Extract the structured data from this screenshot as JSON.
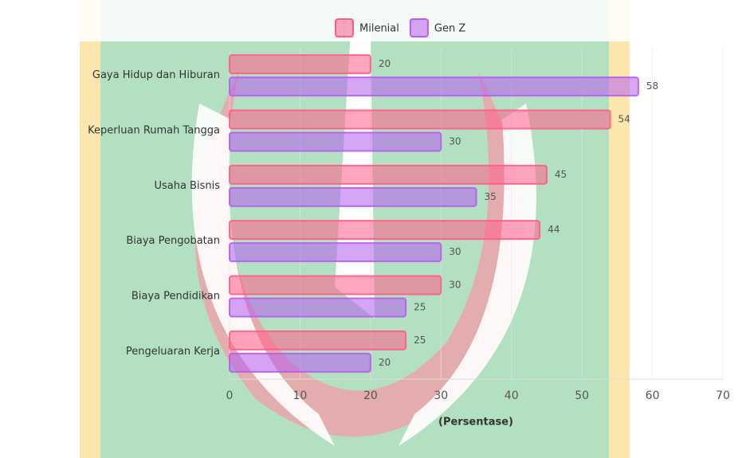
{
  "chart_data": {
    "type": "hbar",
    "categories": [
      "Gaya Hidup dan Hiburan",
      "Keperluan Rumah Tangga",
      "Usaha Bisnis",
      "Biaya Pengobatan",
      "Biaya Pendidikan",
      "Pengeluaran Kerja"
    ],
    "series": [
      {
        "name": "Milenial",
        "color": "#ff5c8a",
        "values": [
          20,
          54,
          45,
          44,
          30,
          25
        ]
      },
      {
        "name": "Gen Z",
        "color": "#b65cf0",
        "values": [
          58,
          30,
          35,
          30,
          25,
          20
        ]
      }
    ],
    "xlim": [
      0,
      70
    ],
    "xticks": [
      0,
      10,
      20,
      30,
      40,
      50,
      60,
      70
    ],
    "xlabel": "(Persentase)",
    "grid": true,
    "legend": "top"
  }
}
